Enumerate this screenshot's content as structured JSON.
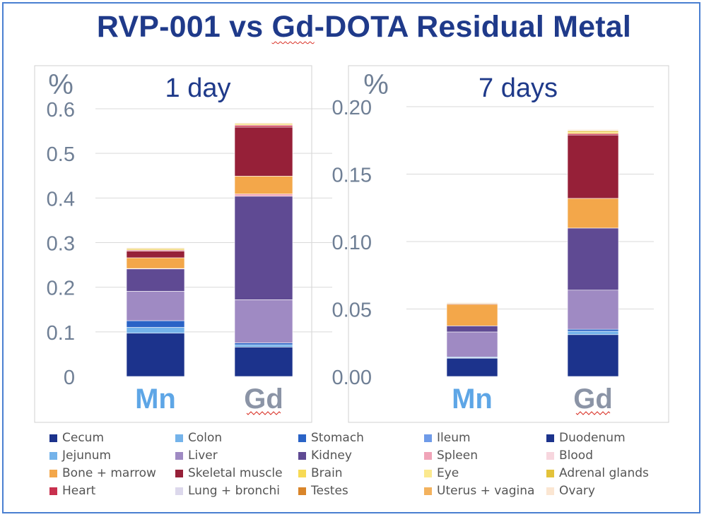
{
  "title": {
    "pre": "RVP-001 vs ",
    "underlined": "Gd",
    "post": "-DOTA Residual Metal"
  },
  "chart_data": [
    {
      "type": "bar",
      "stacked": true,
      "panel_title": "1 day",
      "unit_label": "%",
      "categories": [
        "Mn",
        "Gd"
      ],
      "ylim": [
        0,
        0.6
      ],
      "yticks": [
        "0",
        "0.1",
        "0.2",
        "0.3",
        "0.4",
        "0.5",
        "0.6"
      ],
      "grid": true,
      "series": [
        {
          "name": "Duodenum",
          "color": "#1c338c",
          "values": [
            0.097,
            0.066
          ]
        },
        {
          "name": "Jejunum",
          "color": "#74b3ea",
          "values": [
            0.013,
            0.005
          ]
        },
        {
          "name": "Stomach",
          "color": "#2a63c6",
          "values": [
            0.015,
            0.004
          ]
        },
        {
          "name": "Liver",
          "color": "#9f8ac3",
          "values": [
            0.066,
            0.097
          ]
        },
        {
          "name": "Kidney",
          "color": "#5f4a93",
          "values": [
            0.05,
            0.232
          ]
        },
        {
          "name": "Spleen",
          "color": "#f0a4b8",
          "values": [
            0.001,
            0.005
          ]
        },
        {
          "name": "Bone + marrow",
          "color": "#f3a74a",
          "values": [
            0.024,
            0.04
          ]
        },
        {
          "name": "Skeletal muscle",
          "color": "#962038",
          "values": [
            0.015,
            0.11
          ]
        },
        {
          "name": "Heart",
          "color": "#c8304e",
          "values": [
            0.002,
            0.004
          ]
        },
        {
          "name": "Brain",
          "color": "#f7da55",
          "values": [
            0.002,
            0.002
          ]
        },
        {
          "name": "Adrenal glands",
          "color": "#e3c23a",
          "values": [
            0.002,
            0.002
          ]
        },
        {
          "name": "Ovary",
          "color": "#fbe6d2",
          "values": [
            0.002,
            0.002
          ]
        }
      ]
    },
    {
      "type": "bar",
      "stacked": true,
      "panel_title": "7 days",
      "unit_label": "%",
      "categories": [
        "Mn",
        "Gd"
      ],
      "ylim": [
        0,
        0.2
      ],
      "yticks": [
        "0.00",
        "0.05",
        "0.10",
        "0.15",
        "0.20"
      ],
      "grid": true,
      "series": [
        {
          "name": "Duodenum",
          "color": "#1c338c",
          "values": [
            0.0135,
            0.031
          ]
        },
        {
          "name": "Jejunum",
          "color": "#74b3ea",
          "values": [
            0.0005,
            0.0025
          ]
        },
        {
          "name": "Stomach",
          "color": "#2a63c6",
          "values": [
            0.0005,
            0.0015
          ]
        },
        {
          "name": "Liver",
          "color": "#9f8ac3",
          "values": [
            0.0185,
            0.029
          ]
        },
        {
          "name": "Kidney",
          "color": "#5f4a93",
          "values": [
            0.0045,
            0.046
          ]
        },
        {
          "name": "Bone + marrow",
          "color": "#f3a74a",
          "values": [
            0.016,
            0.022
          ]
        },
        {
          "name": "Skeletal muscle",
          "color": "#962038",
          "values": [
            0.0005,
            0.047
          ]
        },
        {
          "name": "Heart",
          "color": "#c8304e",
          "values": [
            0.0,
            0.001
          ]
        },
        {
          "name": "Brain",
          "color": "#f7da55",
          "values": [
            0.0005,
            0.001
          ]
        },
        {
          "name": "Adrenal glands",
          "color": "#e3c23a",
          "values": [
            0.0,
            0.001
          ]
        },
        {
          "name": "Ovary",
          "color": "#fbe6d2",
          "values": [
            0.0005,
            0.001
          ]
        }
      ]
    }
  ],
  "legend": [
    {
      "name": "Cecum",
      "color": "#1c338c"
    },
    {
      "name": "Colon",
      "color": "#74b3ea"
    },
    {
      "name": "Stomach",
      "color": "#2a63c6"
    },
    {
      "name": "Ileum",
      "color": "#6f9be8"
    },
    {
      "name": "Duodenum",
      "color": "#1c338c"
    },
    {
      "name": "Jejunum",
      "color": "#74b3ea"
    },
    {
      "name": "Liver",
      "color": "#9f8ac3"
    },
    {
      "name": "Kidney",
      "color": "#5f4a93"
    },
    {
      "name": "Spleen",
      "color": "#f0a4b8"
    },
    {
      "name": "Blood",
      "color": "#f7d6de"
    },
    {
      "name": "Bone + marrow",
      "color": "#f3a74a"
    },
    {
      "name": "Skeletal muscle",
      "color": "#962038"
    },
    {
      "name": "Brain",
      "color": "#f7da55"
    },
    {
      "name": "Eye",
      "color": "#fbe98f"
    },
    {
      "name": "Adrenal glands",
      "color": "#e3c23a"
    },
    {
      "name": "Heart",
      "color": "#c8304e"
    },
    {
      "name": "Lung + bronchi",
      "color": "#dcd8ec"
    },
    {
      "name": "Testes",
      "color": "#d9852a"
    },
    {
      "name": "Uterus + vagina",
      "color": "#f3b25e"
    },
    {
      "name": "Ovary",
      "color": "#fbe6d2"
    }
  ],
  "colors": {
    "title": "#1f3a8a",
    "mn_label": "#5ea6e6",
    "gd_label": "#8b94a6",
    "axis_text": "#6f7f95",
    "grid": "#d9d9d9"
  }
}
